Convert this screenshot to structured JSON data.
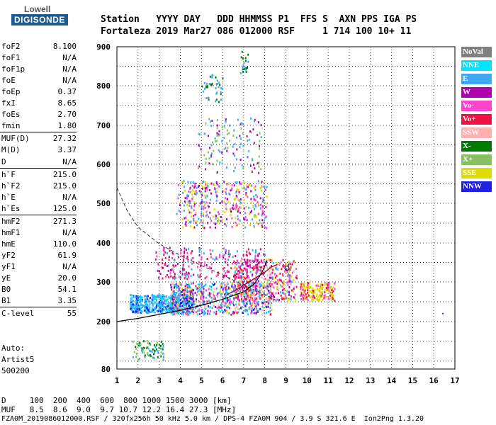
{
  "logo": {
    "top": "Lowell",
    "bottom": "DIGISONDE"
  },
  "header": {
    "line1": "Station   YYYY DAY   DDD HHMMSS P1  FFS S  AXN PPS IGA PS",
    "line2": "Fortaleza 2019 Mar27 086 012000 RSF     1 714 100 10+ 11"
  },
  "params": [
    {
      "label": "foF2",
      "value": "8.100"
    },
    {
      "label": "foF1",
      "value": "N/A"
    },
    {
      "label": "foF1p",
      "value": "N/A"
    },
    {
      "label": "foE",
      "value": "N/A"
    },
    {
      "label": "foEp",
      "value": "0.37"
    },
    {
      "label": "fxI",
      "value": "8.65"
    },
    {
      "label": "foEs",
      "value": "2.70"
    },
    {
      "label": "fmin",
      "value": "1.80"
    },
    {
      "label": "MUF(D)",
      "value": "27.32"
    },
    {
      "label": "M(D)",
      "value": "3.37"
    },
    {
      "label": "D",
      "value": "N/A"
    },
    {
      "label": "h`F",
      "value": "215.0"
    },
    {
      "label": "h`F2",
      "value": "215.0"
    },
    {
      "label": "h`E",
      "value": "N/A"
    },
    {
      "label": "h`Es",
      "value": "125.0"
    },
    {
      "label": "hmF2",
      "value": "271.3"
    },
    {
      "label": "hmF1",
      "value": "N/A"
    },
    {
      "label": "hmE",
      "value": "110.0"
    },
    {
      "label": "yF2",
      "value": "61.9"
    },
    {
      "label": "yF1",
      "value": "N/A"
    },
    {
      "label": "yE",
      "value": "20.0"
    },
    {
      "label": "B0",
      "value": "54.1"
    },
    {
      "label": "B1",
      "value": "3.35"
    },
    {
      "label": "C-level",
      "value": "55"
    }
  ],
  "auto": {
    "line1": "Auto:",
    "line2": "Artist5",
    "line3": "500200"
  },
  "legend": [
    {
      "label": "NoVal",
      "color": "#808080"
    },
    {
      "label": "NNE",
      "color": "#00e5ff"
    },
    {
      "label": "E",
      "color": "#3ea8f0"
    },
    {
      "label": "W",
      "color": "#b000b0"
    },
    {
      "label": "Vo-",
      "color": "#ff44cc"
    },
    {
      "label": "Vo+",
      "color": "#ee1144"
    },
    {
      "label": "SSW",
      "color": "#ffb0b0"
    },
    {
      "label": "X-",
      "color": "#007a00"
    },
    {
      "label": "X+",
      "color": "#88c060"
    },
    {
      "label": "SSE",
      "color": "#dddd00"
    },
    {
      "label": "NNW",
      "color": "#2020e0"
    }
  ],
  "footer": {
    "line1": "D     100  200  400  600  800 1000 1500 3000 [km]",
    "line2": "MUF   8.5  8.6  9.0  9.7 10.7 12.2 16.4 27.3 [MHz]",
    "line3": "FZA0M_2019086012000.RSF / 320fx256h 50 kHz 5.0 km / DPS-4 FZA0M 904 / 3.9 S 321.6 E  Ion2Png 1.3.20"
  },
  "chart_data": {
    "type": "scatter",
    "xlim": [
      1,
      17
    ],
    "ylim": [
      80,
      900
    ],
    "x_ticks": [
      "1",
      "2",
      "3",
      "4",
      "5",
      "6",
      "7",
      "8",
      "9",
      "10",
      "11",
      "12",
      "13",
      "14",
      "15",
      "16",
      "17"
    ],
    "y_ticks": [
      "80",
      "200",
      "300",
      "400",
      "500",
      "600",
      "700",
      "800",
      "900"
    ],
    "grid": true,
    "profile_curve": [
      [
        1.0,
        200
      ],
      [
        2,
        208
      ],
      [
        3,
        218
      ],
      [
        4,
        228
      ],
      [
        5,
        241
      ],
      [
        6,
        256
      ],
      [
        7,
        275
      ],
      [
        7.5,
        295
      ],
      [
        7.8,
        318
      ],
      [
        8.0,
        340
      ],
      [
        8.1,
        355
      ]
    ],
    "muf_curve": [
      [
        1.0,
        540
      ],
      [
        1.5,
        480
      ],
      [
        2,
        440
      ],
      [
        3,
        398
      ],
      [
        4,
        368
      ],
      [
        5,
        342
      ],
      [
        6,
        318
      ],
      [
        7,
        292
      ],
      [
        8,
        268
      ],
      [
        8.5,
        255
      ]
    ],
    "fit_trace": [
      [
        6.2,
        268
      ],
      [
        6.6,
        278
      ],
      [
        7.0,
        292
      ],
      [
        7.5,
        308
      ],
      [
        8.0,
        325
      ],
      [
        8.3,
        338
      ],
      [
        8.6,
        345
      ]
    ],
    "marker": [
      9.05,
      335
    ],
    "dot": [
      16.4,
      222
    ]
  }
}
